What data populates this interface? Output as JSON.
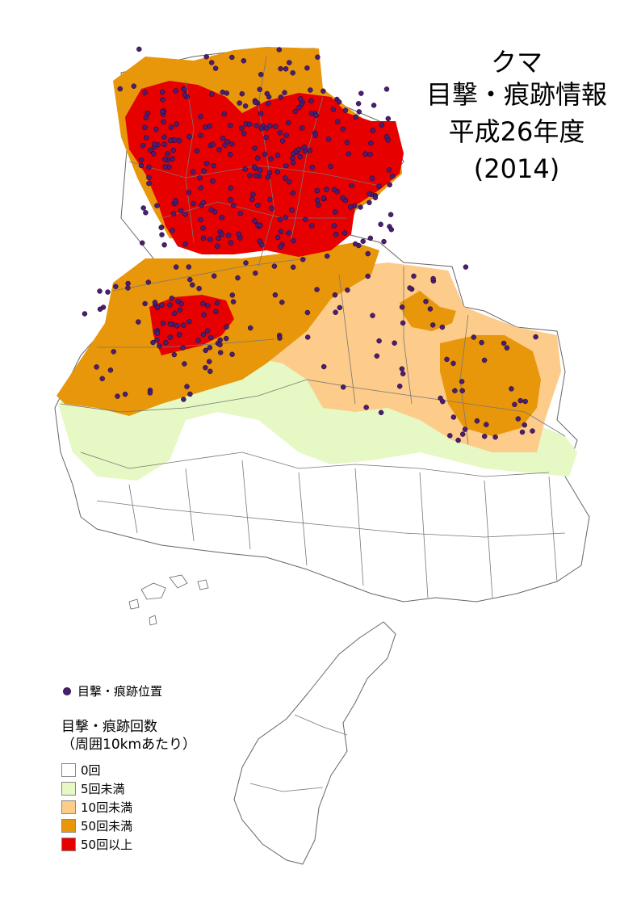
{
  "title": {
    "line1": "クマ",
    "line2": "目撃・痕跡情報",
    "line3": "平成26年度",
    "line4": "(2014)"
  },
  "point_legend": {
    "label": "目撃・痕跡位置",
    "color": "#4a1f6e"
  },
  "legend": {
    "title": "目撃・痕跡回数",
    "subtitle": "（周囲10kmあたり）",
    "items": [
      {
        "label": "0回",
        "color": "#ffffff"
      },
      {
        "label": "5回未満",
        "color": "#e6f8c4"
      },
      {
        "label": "10回未満",
        "color": "#fdcb8a"
      },
      {
        "label": "50回未満",
        "color": "#e8960a"
      },
      {
        "label": "50回以上",
        "color": "#e60000"
      }
    ]
  },
  "colors": {
    "border": "#666666",
    "zero": "#ffffff",
    "lt5": "#e6f8c4",
    "lt10": "#fdcb8a",
    "lt50": "#e8960a",
    "ge50": "#e60000",
    "point": "#4a1f6e"
  }
}
